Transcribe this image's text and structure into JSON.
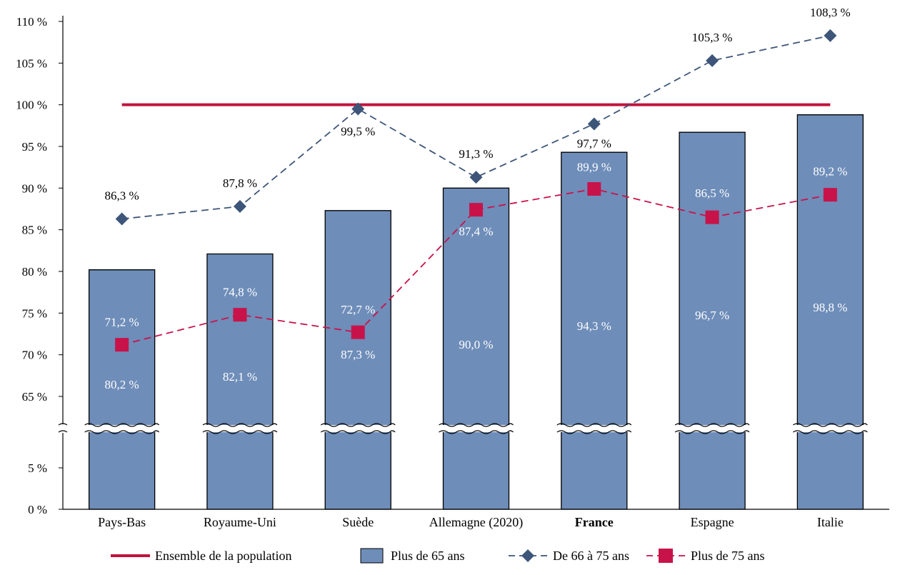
{
  "chart_data": {
    "type": "bar",
    "title": "",
    "xlabel": "",
    "ylabel": "",
    "categories": [
      "Pays-Bas",
      "Royaume-Uni",
      "Suède",
      "Allemagne (2020)",
      "France",
      "Espagne",
      "Italie"
    ],
    "highlight_category": "France",
    "y_axis": {
      "upper_ticks": [
        "110 %",
        "105 %",
        "100 %",
        "95 %",
        "90 %",
        "85 %",
        "80 %",
        "75 %",
        "70 %",
        "65 %"
      ],
      "lower_ticks": [
        "5 %",
        "0 %"
      ],
      "upper_range": [
        65,
        110
      ],
      "lower_range": [
        0,
        5
      ],
      "axis_break": true
    },
    "series": [
      {
        "name": "Plus de 65 ans",
        "kind": "bar",
        "color": "#6e8db9",
        "values": [
          80.2,
          82.1,
          87.3,
          90.0,
          94.3,
          96.7,
          98.8
        ],
        "labels": [
          "80,2 %",
          "82,1 %",
          "87,3 %",
          "90,0 %",
          "94,3 %",
          "96,7 %",
          "98,8 %"
        ]
      },
      {
        "name": "De 66 à 75 ans",
        "kind": "line",
        "marker": "diamond",
        "color": "#3d5578",
        "values": [
          86.3,
          87.8,
          99.5,
          91.3,
          97.7,
          105.3,
          108.3
        ],
        "labels": [
          "86,3 %",
          "87,8 %",
          "99,5 %",
          "91,3 %",
          "97,7 %",
          "105,3 %",
          "108,3 %"
        ]
      },
      {
        "name": "Plus de 75 ans",
        "kind": "line",
        "marker": "square",
        "color": "#c8134a",
        "values": [
          71.2,
          74.8,
          72.7,
          87.4,
          89.9,
          86.5,
          89.2
        ],
        "labels": [
          "71,2 %",
          "74,8 %",
          "72,7 %",
          "87,4 %",
          "89,9 %",
          "86,5 %",
          "89,2 %"
        ]
      },
      {
        "name": "Ensemble de la population",
        "kind": "reference-line",
        "color": "#c0143c",
        "value": 100
      }
    ],
    "legend": {
      "position": "bottom",
      "order": [
        "Ensemble de la population",
        "Plus de 65 ans",
        "De 66 à 75 ans",
        "Plus de 75 ans"
      ]
    },
    "grid": false
  }
}
